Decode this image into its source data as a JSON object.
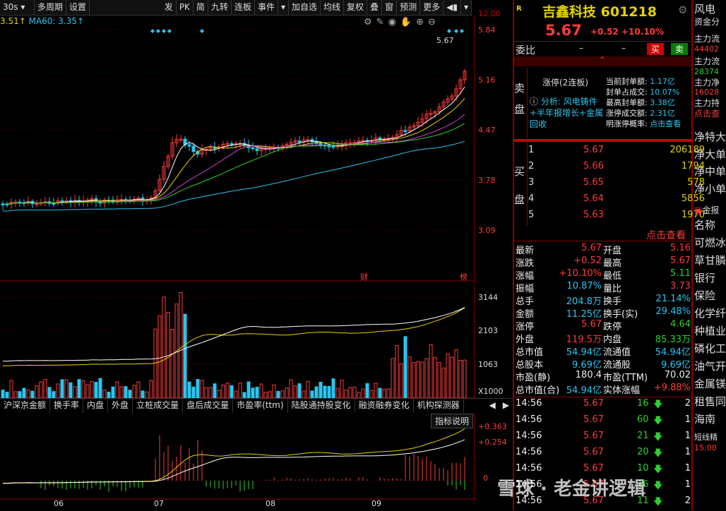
{
  "toolbar": {
    "items": [
      "30s",
      "多周期",
      "设置",
      "发",
      "PK",
      "简",
      "九转",
      "连板",
      "事件",
      "加自选",
      "均线",
      "复权",
      "叠",
      "窗",
      "预测",
      "更多"
    ]
  },
  "ma_legend": {
    "ma_prefix": "3.51↑",
    "ma60": "MA60: 3.35↑"
  },
  "price_axis": [
    "5.84",
    "5.16",
    "4.47",
    "3.78",
    "3.09"
  ],
  "top_axis_cut": "12.00",
  "last_price_label": "5.67",
  "markers": {
    "cai": "财",
    "bang": "榜"
  },
  "volume_axis": [
    "3144",
    "2103",
    "1063",
    "X1000"
  ],
  "indicator_axis": [
    "+0.363",
    "+0.254",
    "0"
  ],
  "indicator_btn": "指标说明",
  "bottom_tabs": [
    "沪深京金额",
    "换手率",
    "内盘",
    "外盘",
    "立桩成交量",
    "盘后成交量",
    "市盈率(ttm)",
    "陆股通持股变化",
    "融资融券变化",
    "机构探测器"
  ],
  "months": [
    "06",
    "07",
    "08",
    "09"
  ],
  "stock": {
    "badge": "R",
    "name": "吉鑫科技",
    "code": "601218",
    "price": "5.67",
    "change": "+0.52",
    "pct": "+10.10%"
  },
  "weibi": {
    "label": "委比",
    "v1": "–",
    "v2": "–",
    "buy_btn": "买",
    "sell_btn": "卖"
  },
  "sell_panel": {
    "side_label": "卖\n盘",
    "limit_status": "涨停(2连板)",
    "analysis": "分析: 风电铸件+半年报增长+金属回收",
    "kv": [
      [
        "当前封单额:",
        "1.17亿"
      ],
      [
        "封单占成交:",
        "10.07%"
      ],
      [
        "最高封单额:",
        "3.38亿"
      ],
      [
        "涨停成交额:",
        "2.31亿"
      ],
      [
        "明涨停概率:",
        "点击查看"
      ]
    ]
  },
  "buy_panel": {
    "side_label": "买\n盘",
    "rows": [
      [
        "1",
        "5.67",
        "206189"
      ],
      [
        "2",
        "5.66",
        "1794"
      ],
      [
        "3",
        "5.65",
        "578"
      ],
      [
        "4",
        "5.64",
        "5856"
      ],
      [
        "5",
        "5.63",
        "1970"
      ]
    ],
    "link": "点击查看"
  },
  "quote": [
    [
      "最新",
      "5.67",
      "开盘",
      "5.16"
    ],
    [
      "涨跌",
      "+0.52",
      "最高",
      "5.67"
    ],
    [
      "涨幅",
      "+10.10%",
      "最低",
      "5.11"
    ],
    [
      "振幅",
      "10.87%",
      "量比",
      "3.73"
    ],
    [
      "总手",
      "204.8万",
      "换手",
      "21.14%"
    ],
    [
      "金额",
      "11.25亿",
      "换手(实)",
      "29.48%"
    ],
    [
      "涨停",
      "5.67",
      "跌停",
      "4.64"
    ],
    [
      "外盘",
      "119.5万",
      "内盘",
      "85.33万"
    ],
    [
      "总市值",
      "54.94亿",
      "流通值",
      "54.94亿"
    ],
    [
      "总股本",
      "9.69亿",
      "流通股",
      "9.69亿"
    ],
    [
      "市盈(静)",
      "180.4",
      "市盈(TTM)",
      "70.02"
    ],
    [
      "总市值(合)",
      "54.94亿",
      "实体涨幅",
      "+9.88%"
    ]
  ],
  "ticks": [
    [
      "14:56",
      "5.67",
      "16",
      "2"
    ],
    [
      "14:56",
      "5.67",
      "60",
      "1"
    ],
    [
      "14:56",
      "5.67",
      "21",
      "1"
    ],
    [
      "14:56",
      "5.67",
      "20",
      "1"
    ],
    [
      "14:56",
      "5.67",
      "10",
      "1"
    ],
    [
      "14:56",
      "5.67",
      "16",
      "1"
    ],
    [
      "14:56",
      "5.67",
      "11",
      "2"
    ]
  ],
  "far_right": {
    "top": "风电",
    "sub": "资金分",
    "flows": [
      [
        "主力流",
        "44402"
      ],
      [
        "主力流",
        "28374"
      ],
      [
        "主力净",
        "16028"
      ],
      [
        "主力持",
        "点击查"
      ]
    ],
    "net": [
      "净特大",
      "净大单",
      "净中单",
      "净小单"
    ],
    "gold": "金报",
    "list": [
      "名称",
      "可燃冰",
      "草甘膦",
      "银行",
      "保险",
      "化学纤",
      "种植业",
      "磷化工",
      "油气开",
      "金属镁",
      "租售同",
      "海南"
    ],
    "short": "短线精",
    "time": "15:00"
  },
  "watermark": "雪球 · 老金讲逻辑"
}
